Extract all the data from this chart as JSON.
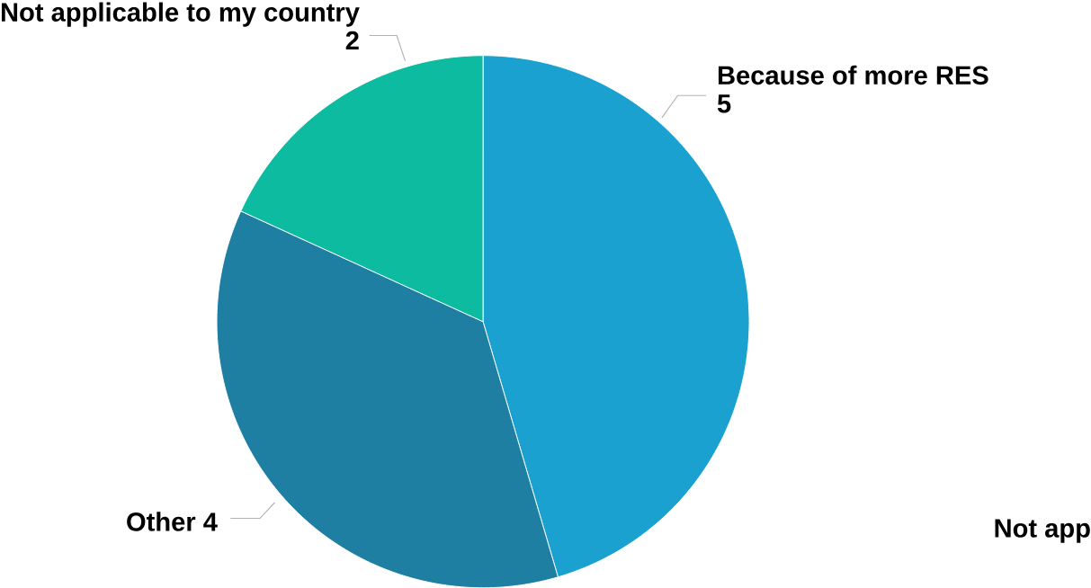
{
  "chart_data": {
    "type": "pie",
    "categories": [
      "Because of more RES",
      "Other",
      "Not applicable to my country"
    ],
    "values": [
      5,
      4,
      2
    ],
    "colors": [
      "#1ba1cf",
      "#1f7fa3",
      "#0cbba0"
    ],
    "data_labels": true,
    "annotations": [
      "Not app"
    ]
  }
}
